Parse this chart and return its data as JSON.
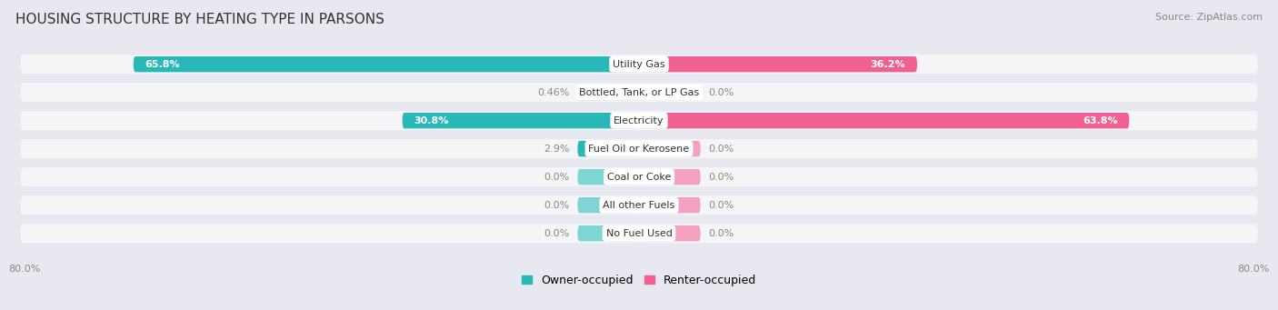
{
  "title": "HOUSING STRUCTURE BY HEATING TYPE IN PARSONS",
  "source": "Source: ZipAtlas.com",
  "categories": [
    "Utility Gas",
    "Bottled, Tank, or LP Gas",
    "Electricity",
    "Fuel Oil or Kerosene",
    "Coal or Coke",
    "All other Fuels",
    "No Fuel Used"
  ],
  "owner_values": [
    65.8,
    0.46,
    30.8,
    2.9,
    0.0,
    0.0,
    0.0
  ],
  "renter_values": [
    36.2,
    0.0,
    63.8,
    0.0,
    0.0,
    0.0,
    0.0
  ],
  "owner_color": "#29b8b8",
  "owner_color_light": "#7fd4d4",
  "renter_color": "#f06090",
  "renter_color_light": "#f4a0c0",
  "owner_label": "Owner-occupied",
  "renter_label": "Renter-occupied",
  "axis_max": 80.0,
  "bg_color": "#e8e8f0",
  "row_bg_color": "#f5f5f8",
  "title_fontsize": 11,
  "source_fontsize": 8,
  "category_fontsize": 8,
  "value_fontsize": 8,
  "legend_fontsize": 9,
  "axis_label_fontsize": 8,
  "stub_size": 8.0,
  "inside_label_threshold": 10.0
}
